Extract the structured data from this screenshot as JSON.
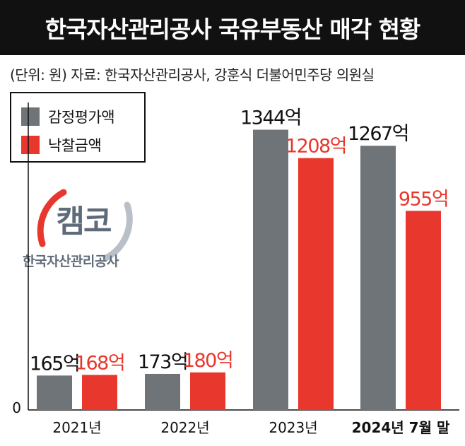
{
  "title": "한국자산관리공사 국유부동산 매각 현황",
  "subtitle": "(단위: 원) 자료: 한국자산관리공사, 강훈식 더불어민주당 의원실",
  "logo": {
    "mark": "캠코",
    "org": "한국자산관리공사"
  },
  "colors": {
    "appraisal": "#6e7478",
    "winning": "#e8372c",
    "title_bg": "#111111"
  },
  "chart_data": {
    "type": "bar",
    "title": "한국자산관리공사 국유부동산 매각 현황",
    "subtitle": "(단위: 원) 자료: 한국자산관리공사, 강훈식 더불어민주당 의원실",
    "categories": [
      "2021년",
      "2022년",
      "2023년",
      "2024년 7월 말"
    ],
    "series": [
      {
        "name": "감정평가액",
        "values": [
          165,
          173,
          1344,
          1267
        ],
        "labels": [
          "165억",
          "173억",
          "1344억",
          "1267억"
        ]
      },
      {
        "name": "낙찰금액",
        "values": [
          168,
          180,
          1208,
          955
        ],
        "labels": [
          "168억",
          "180억",
          "1208억",
          "955억"
        ]
      }
    ],
    "unit": "억",
    "y_axis_tick": "0",
    "ylim": [
      0,
      1400
    ],
    "legend": "top-left",
    "grid": false
  }
}
